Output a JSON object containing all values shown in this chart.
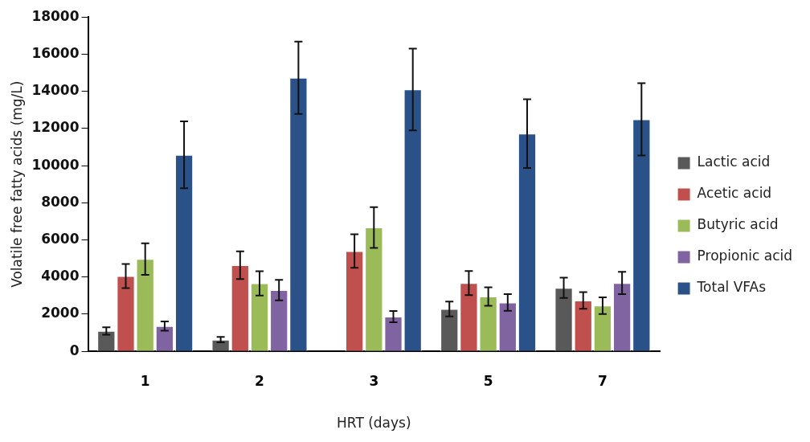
{
  "chart_data": {
    "type": "bar",
    "xlabel": "HRT (days)",
    "ylabel": "Volatile free fatty acids (mg/L)",
    "categories": [
      "1",
      "2",
      "3",
      "5",
      "7"
    ],
    "series": [
      {
        "name": "Lactic acid",
        "color": "#595959",
        "values": [
          1100,
          630,
          null,
          2280,
          3420
        ],
        "errors": [
          200,
          150,
          null,
          400,
          550
        ]
      },
      {
        "name": "Acetic acid",
        "color": "#c0504d",
        "values": [
          4050,
          4640,
          5400,
          3680,
          2740
        ],
        "errors": [
          650,
          750,
          900,
          650,
          450
        ]
      },
      {
        "name": "Butyric acid",
        "color": "#9bbb59",
        "values": [
          4970,
          3660,
          6670,
          2950,
          2460
        ],
        "errors": [
          850,
          650,
          1100,
          500,
          450
        ]
      },
      {
        "name": "Propionic acid",
        "color": "#8064a2",
        "values": [
          1360,
          3300,
          1870,
          2630,
          3680
        ],
        "errors": [
          250,
          550,
          300,
          450,
          600
        ]
      },
      {
        "name": "Total VFAs",
        "color": "#2a5288",
        "values": [
          10580,
          14730,
          14100,
          11720,
          12490
        ],
        "errors": [
          1800,
          1950,
          2200,
          1850,
          1950
        ]
      }
    ],
    "ylim": [
      0,
      18000
    ],
    "yticks": [
      0,
      2000,
      4000,
      6000,
      8000,
      10000,
      12000,
      14000,
      16000,
      18000
    ],
    "grid": false,
    "legend": "right"
  }
}
